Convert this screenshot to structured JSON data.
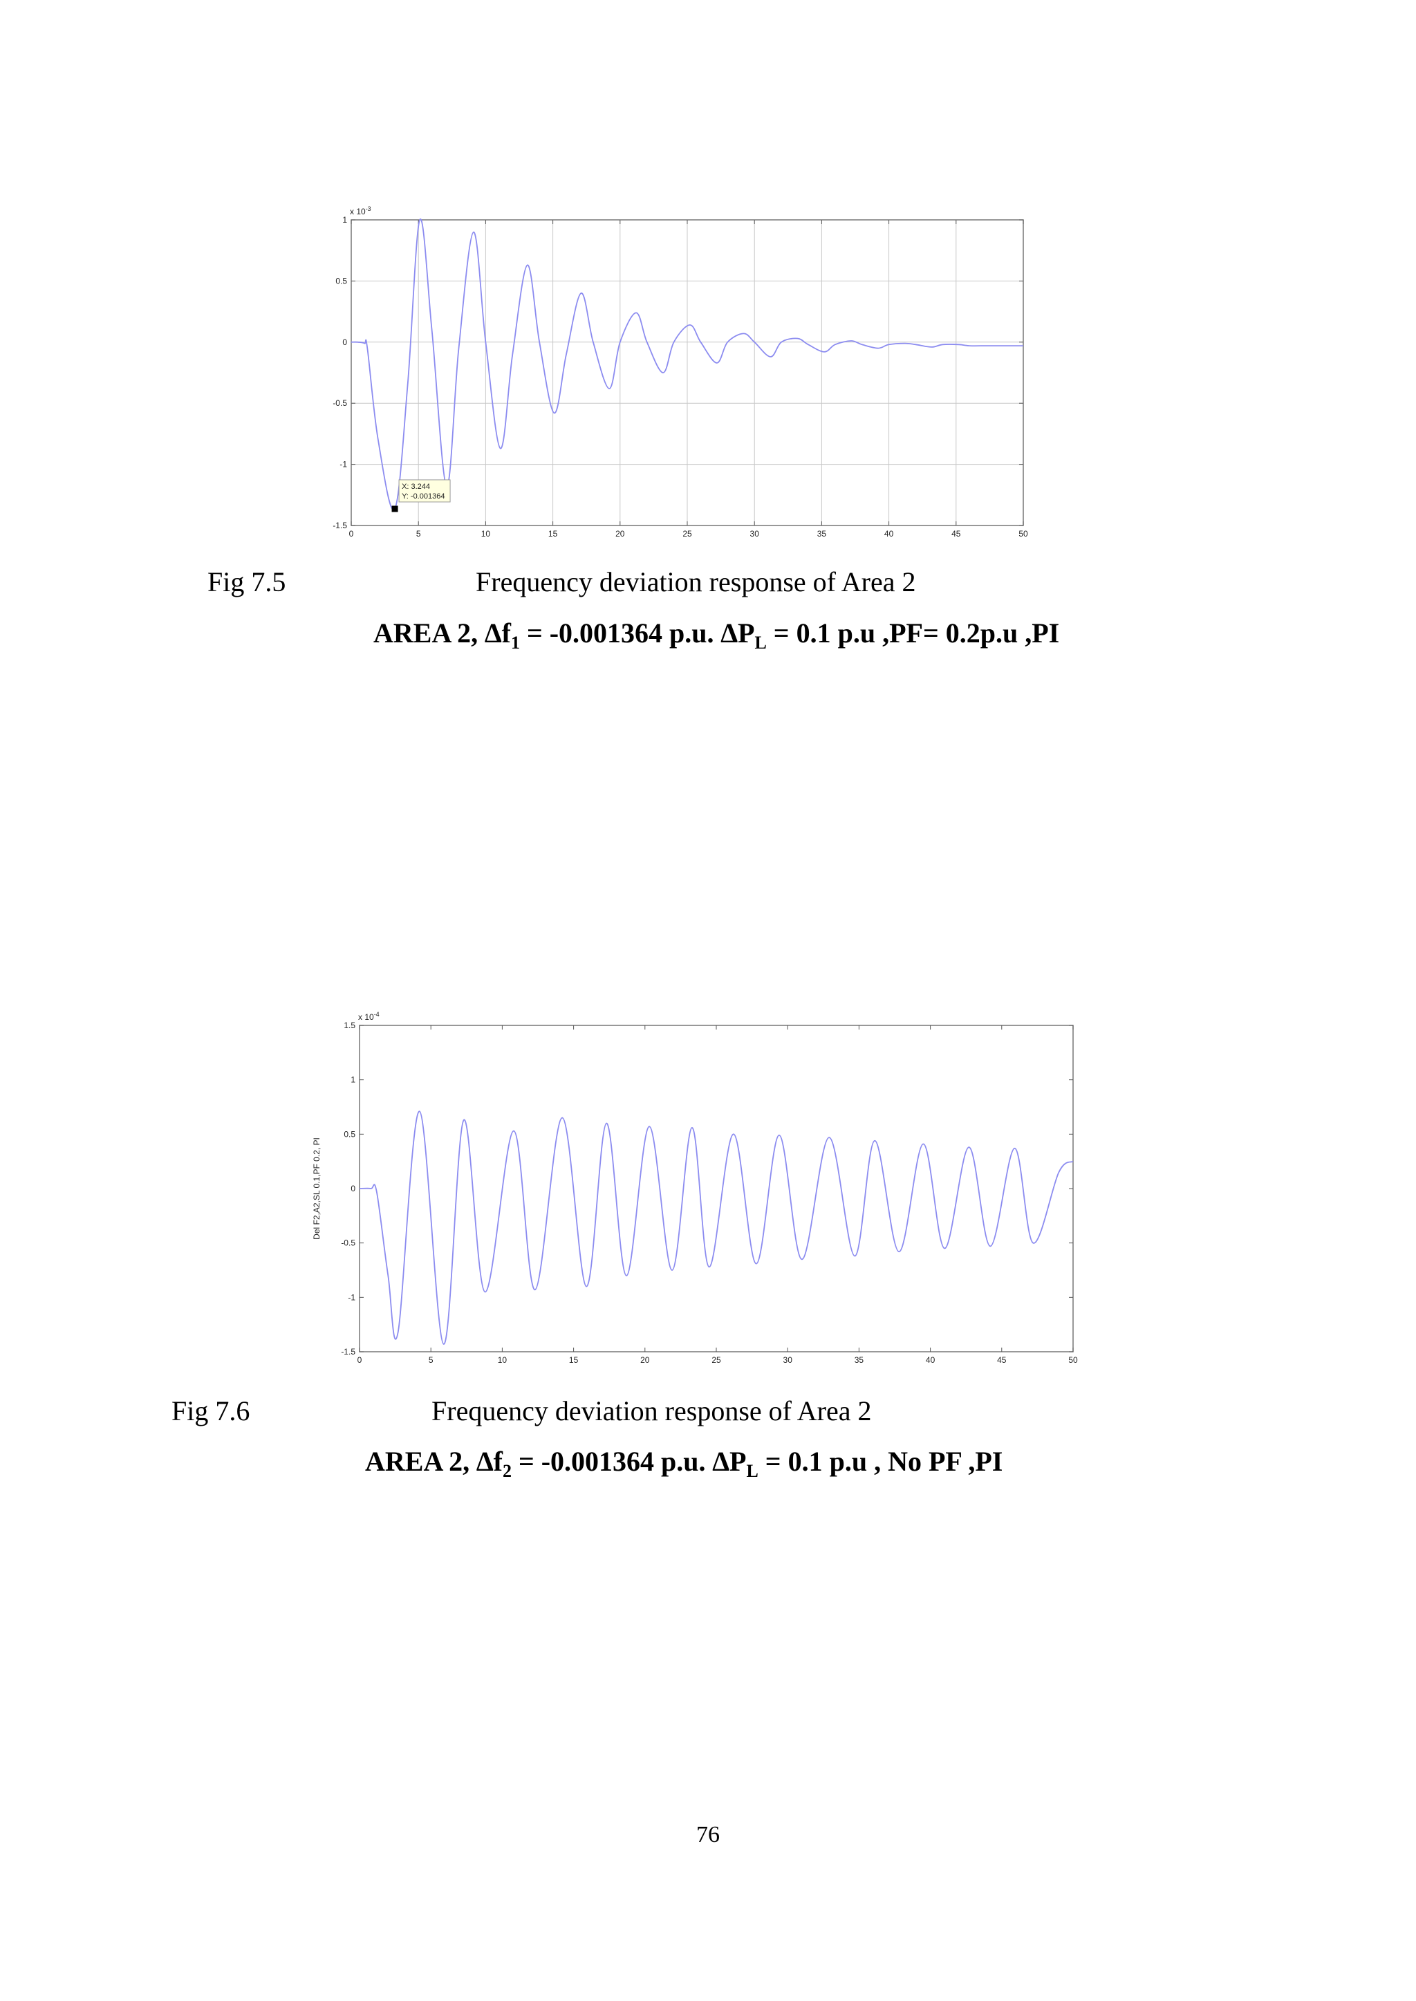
{
  "figures": [
    {
      "fig_no": "Fig 7.5",
      "caption": "Frequency deviation  response  of Area 2",
      "subcaption": {
        "part1": "AREA 2, ",
        "delta_f": "∆f",
        "delta_f_sub": "1",
        "part2": " = -0.001364 p.u.  ",
        "delta_p": "∆P",
        "delta_p_sub": "L",
        "part3": " = 0.1 p.u ,PF=  0.2p.u ,PI"
      }
    },
    {
      "fig_no": "Fig 7.6",
      "caption": "Frequency deviation  response  of Area 2",
      "subcaption": {
        "part1": "AREA 2, ",
        "delta_f": "∆f",
        "delta_f_sub": "2",
        "part2": " = -0.001364 p.u.  ",
        "delta_p": "∆P",
        "delta_p_sub": "L",
        "part3": " = 0.1 p.u , No PF ,PI"
      }
    }
  ],
  "page_number": "76",
  "chart_data": [
    {
      "type": "line",
      "title": "",
      "xlabel": "",
      "ylabel": "",
      "exponent_label": "x 10",
      "exponent_power": "-3",
      "xlim": [
        0,
        50
      ],
      "ylim": [
        -1.5,
        1
      ],
      "xticks": [
        0,
        5,
        10,
        15,
        20,
        25,
        30,
        35,
        40,
        45,
        50
      ],
      "yticks": [
        -1.5,
        -1,
        -0.5,
        0,
        0.5,
        1
      ],
      "ytick_labels": [
        "-1.5",
        "-1",
        "-0.5",
        "0",
        "0.5",
        "1"
      ],
      "grid": true,
      "line_color": "#8c8cf0",
      "series": [
        {
          "x": [
            0,
            0.5,
            1,
            1.2,
            2,
            3.24,
            4.2,
            5.1,
            6,
            7.1,
            8,
            9.1,
            10,
            11.1,
            12,
            13.1,
            14,
            15.1,
            16,
            17.1,
            18,
            19.2,
            20,
            21.2,
            22,
            23.2,
            24,
            25.2,
            26,
            27.2,
            28,
            29.2,
            30,
            31.2,
            32,
            33.2,
            34,
            35.2,
            36,
            37.2,
            38,
            39.2,
            40,
            41.2,
            42,
            43.2,
            44,
            45.2,
            46,
            47.2,
            48,
            49.2,
            50
          ],
          "y": [
            0,
            0,
            -0.01,
            -0.05,
            -0.8,
            -1.364,
            -0.35,
            1.0,
            0.1,
            -1.18,
            -0.05,
            0.9,
            0.0,
            -0.87,
            -0.1,
            0.63,
            0.0,
            -0.58,
            -0.1,
            0.4,
            0.0,
            -0.38,
            0.0,
            0.24,
            0.0,
            -0.25,
            0.0,
            0.14,
            0.0,
            -0.17,
            0.0,
            0.07,
            0.0,
            -0.12,
            0.0,
            0.03,
            -0.02,
            -0.08,
            -0.02,
            0.01,
            -0.02,
            -0.05,
            -0.02,
            -0.01,
            -0.02,
            -0.04,
            -0.02,
            -0.02,
            -0.03,
            -0.03,
            -0.03,
            -0.03,
            -0.03
          ]
        }
      ],
      "annotation": {
        "x_value": 3.244,
        "y_value": -0.001364,
        "x_text": "X: 3.244",
        "y_text": "Y: -0.001364"
      }
    },
    {
      "type": "line",
      "title": "",
      "xlabel": "",
      "ylabel": "Del F2,A2,SL 0.1,PF 0.2, PI",
      "exponent_label": "x 10",
      "exponent_power": "-4",
      "xlim": [
        0,
        50
      ],
      "ylim": [
        -1.5,
        1.5
      ],
      "xticks": [
        0,
        5,
        10,
        15,
        20,
        25,
        30,
        35,
        40,
        45,
        50
      ],
      "yticks": [
        -1.5,
        -1,
        -0.5,
        0,
        0.5,
        1,
        1.5
      ],
      "ytick_labels": [
        "-1.5",
        "-1",
        "-0.5",
        "0",
        "0.5",
        "1",
        "1.5"
      ],
      "grid": false,
      "line_color": "#8c8cf0",
      "series": [
        {
          "x": [
            0,
            0.8,
            1.2,
            2,
            2.7,
            4.2,
            5.9,
            7.3,
            8.8,
            10.8,
            12.3,
            14.2,
            15.9,
            17.3,
            18.7,
            20.3,
            21.9,
            23.3,
            24.5,
            26.2,
            27.8,
            29.4,
            31,
            32.9,
            34.7,
            36.1,
            37.8,
            39.5,
            41,
            42.7,
            44.2,
            45.9,
            47.2,
            49,
            50
          ],
          "y": [
            0,
            0,
            -0.03,
            -0.8,
            -1.32,
            0.71,
            -1.43,
            0.63,
            -0.95,
            0.53,
            -0.93,
            0.65,
            -0.9,
            0.6,
            -0.8,
            0.57,
            -0.75,
            0.56,
            -0.72,
            0.5,
            -0.69,
            0.49,
            -0.65,
            0.47,
            -0.62,
            0.44,
            -0.58,
            0.41,
            -0.55,
            0.38,
            -0.53,
            0.37,
            -0.5,
            0.15,
            0.25
          ]
        }
      ]
    }
  ]
}
